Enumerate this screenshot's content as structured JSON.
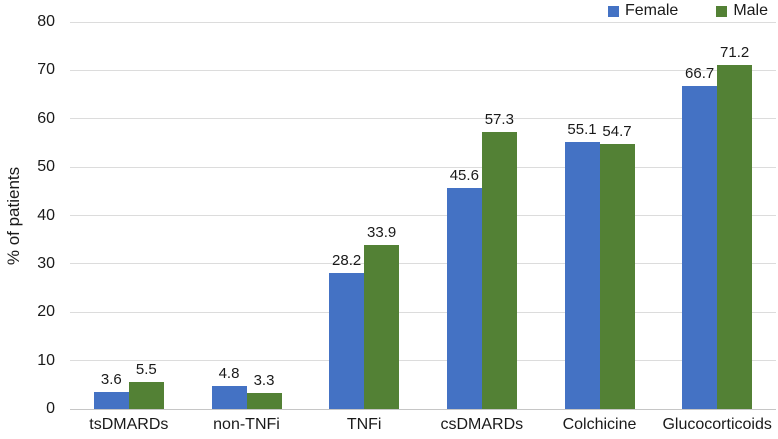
{
  "chart_data": {
    "type": "bar",
    "title": "",
    "xlabel": "",
    "ylabel": "% of patients",
    "categories": [
      "tsDMARDs",
      "non-TNFi",
      "TNFi",
      "csDMARDs",
      "Colchicine",
      "Glucocorticoids"
    ],
    "series": [
      {
        "name": "Female",
        "color": "#4472C4",
        "values": [
          3.6,
          4.8,
          28.2,
          45.6,
          55.1,
          66.7
        ]
      },
      {
        "name": "Male",
        "color": "#538135",
        "values": [
          5.5,
          3.3,
          33.9,
          57.3,
          54.7,
          71.2
        ]
      }
    ],
    "ylim": [
      0,
      80
    ],
    "yticks": [
      0,
      10,
      20,
      30,
      40,
      50,
      60,
      70,
      80
    ],
    "grid": true,
    "legend_position": "top-right",
    "value_labels": true
  },
  "style": {
    "gridline_color": "#dcdcdc",
    "baseline_color": "#c6c6c6",
    "text_color": "#1a1a1a",
    "background": "#ffffff"
  }
}
